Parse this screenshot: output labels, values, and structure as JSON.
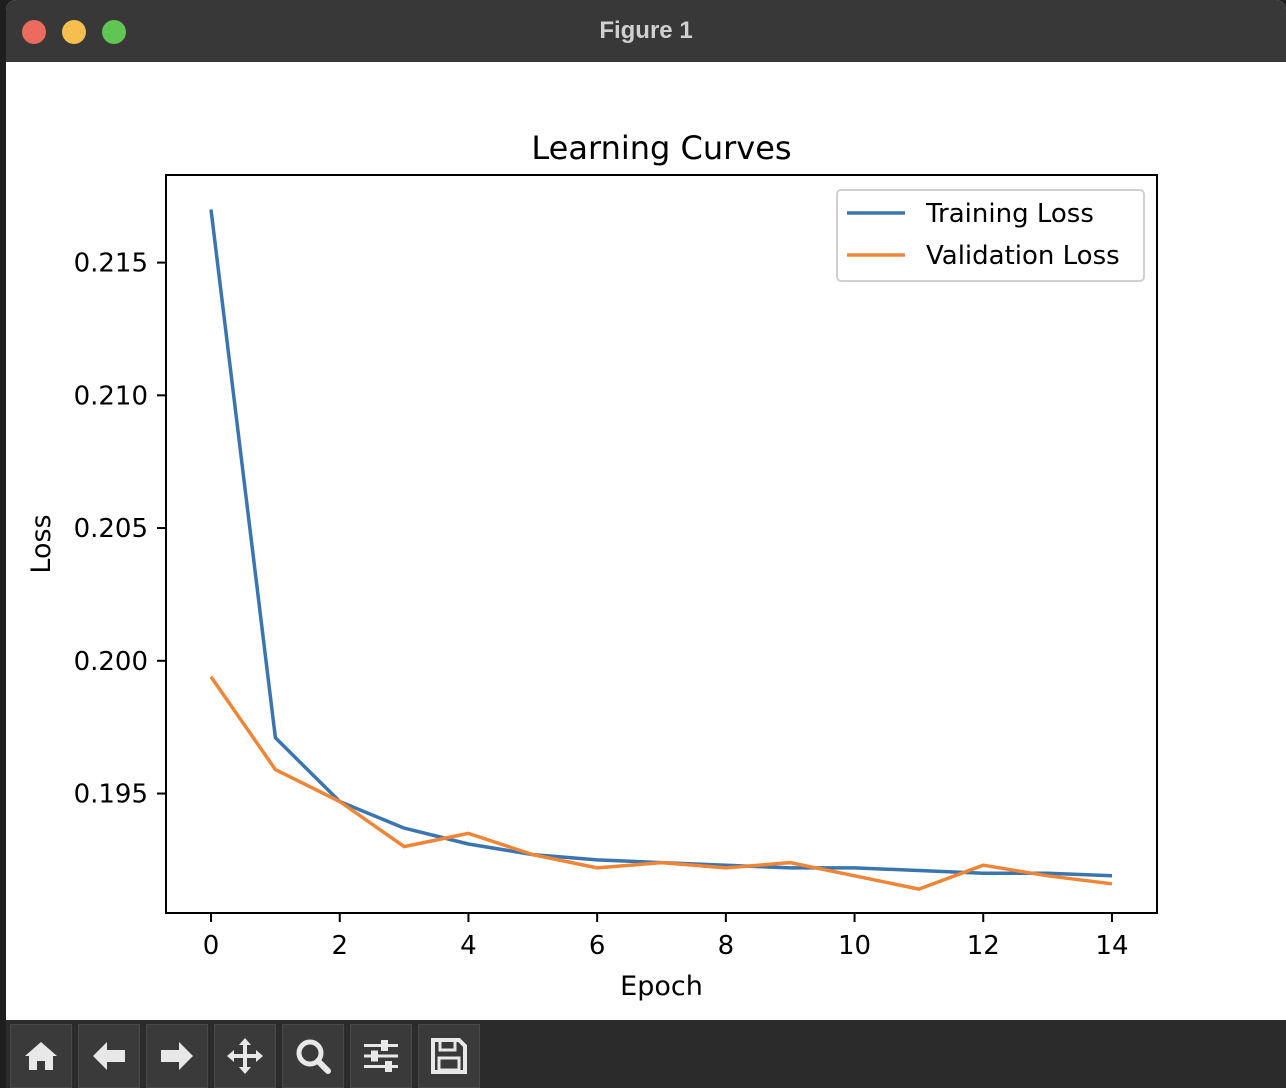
{
  "window": {
    "title": "Figure 1"
  },
  "toolbar": {
    "buttons": [
      {
        "name": "home-button",
        "icon": "home-icon"
      },
      {
        "name": "back-button",
        "icon": "arrow-left-icon"
      },
      {
        "name": "forward-button",
        "icon": "arrow-right-icon"
      },
      {
        "name": "pan-button",
        "icon": "move-icon"
      },
      {
        "name": "zoom-button",
        "icon": "magnifier-icon"
      },
      {
        "name": "configure-subplots-button",
        "icon": "sliders-icon"
      },
      {
        "name": "save-button",
        "icon": "floppy-disk-icon"
      }
    ]
  },
  "chart_data": {
    "type": "line",
    "title": "Learning Curves",
    "xlabel": "Epoch",
    "ylabel": "Loss",
    "x": [
      0,
      1,
      2,
      3,
      4,
      5,
      6,
      7,
      8,
      9,
      10,
      11,
      12,
      13,
      14
    ],
    "series": [
      {
        "name": "Training Loss",
        "color": "#3a75b0",
        "values": [
          0.217,
          0.1971,
          0.1947,
          0.1937,
          0.1931,
          0.1927,
          0.1925,
          0.1924,
          0.1923,
          0.1922,
          0.1922,
          0.1921,
          0.192,
          0.192,
          0.1919
        ]
      },
      {
        "name": "Validation Loss",
        "color": "#ef8536",
        "values": [
          0.1994,
          0.1959,
          0.1947,
          0.193,
          0.1935,
          0.1927,
          0.1922,
          0.1924,
          0.1922,
          0.1924,
          0.1919,
          0.1914,
          0.1923,
          0.1919,
          0.1916
        ]
      }
    ],
    "xlim": [
      -0.7,
      14.7
    ],
    "ylim": [
      0.1905,
      0.2183
    ],
    "xticks": [
      "0",
      "2",
      "4",
      "6",
      "8",
      "10",
      "12",
      "14"
    ],
    "yticks": [
      "0.195",
      "0.200",
      "0.205",
      "0.210",
      "0.215"
    ],
    "legend_position": "top-right",
    "grid": false
  }
}
